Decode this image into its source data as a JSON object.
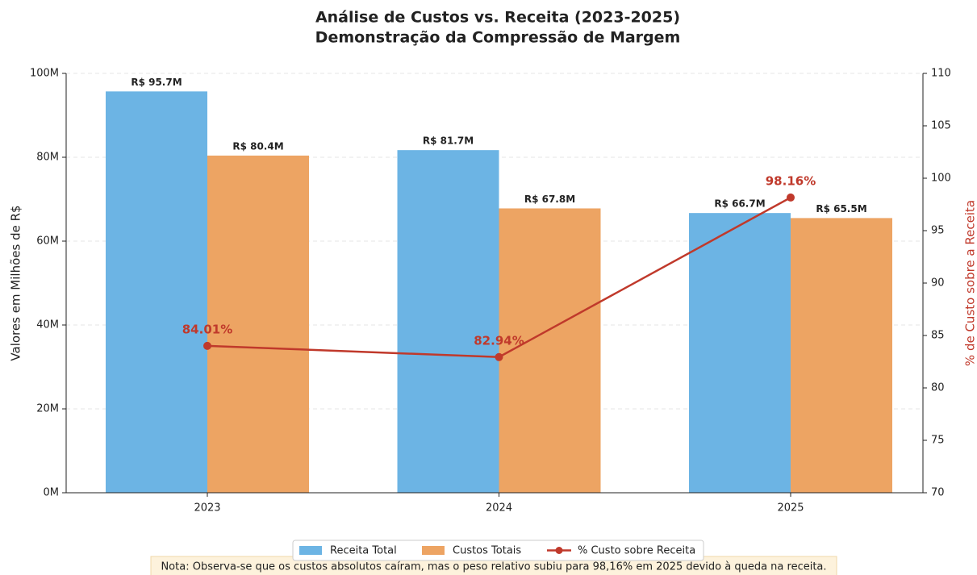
{
  "chart_data": {
    "type": "bar",
    "title": "Análise de Custos vs. Receita (2023-2025)",
    "subtitle": "Demonstração da Compressão de Margem",
    "y_label": "Valores em Milhões de R$",
    "y2_label": "% de Custo sobre a Receita",
    "categories": [
      "2023",
      "2024",
      "2025"
    ],
    "series": [
      {
        "name": "Receita Total",
        "color": "#6cb4e4",
        "values": [
          95.7,
          81.7,
          66.7
        ],
        "value_labels": [
          "R$ 95.7M",
          "R$ 81.7M",
          "R$ 66.7M"
        ]
      },
      {
        "name": "Custos Totais",
        "color": "#eda463",
        "values": [
          80.4,
          67.8,
          65.5
        ],
        "value_labels": [
          "R$ 80.4M",
          "R$ 67.8M",
          "R$ 65.5M"
        ]
      },
      {
        "name": "% Custo sobre Receita",
        "color": "#c0392b",
        "type": "line",
        "axis": "y2",
        "values": [
          84.01,
          82.94,
          98.16
        ],
        "value_labels": [
          "84.01%",
          "82.94%",
          "98.16%"
        ]
      }
    ],
    "ylim": [
      0,
      100
    ],
    "yticks": [
      {
        "value": 0,
        "label": "0M"
      },
      {
        "value": 20,
        "label": "20M"
      },
      {
        "value": 40,
        "label": "40M"
      },
      {
        "value": 60,
        "label": "60M"
      },
      {
        "value": 80,
        "label": "80M"
      },
      {
        "value": 100,
        "label": "100M"
      }
    ],
    "y2lim": [
      70,
      110
    ],
    "y2ticks": [
      70,
      75,
      80,
      85,
      90,
      95,
      100,
      105,
      110
    ],
    "grid": true,
    "legend": "bottom",
    "note": "Nota: Observa-se que os custos absolutos caíram, mas o peso relativo subiu para 98,16% em 2025 devido à queda na receita."
  }
}
